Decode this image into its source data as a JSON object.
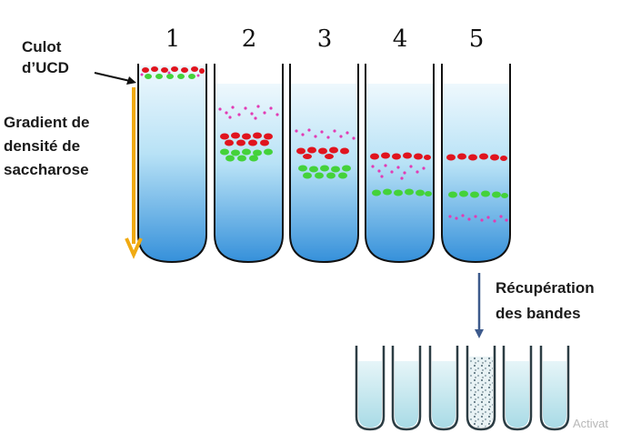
{
  "tubes": [
    {
      "number": "1"
    },
    {
      "number": "2"
    },
    {
      "number": "3"
    },
    {
      "number": "4"
    },
    {
      "number": "5"
    }
  ],
  "labels": {
    "culot_line1": "Culot",
    "culot_line2": "d’UCD",
    "gradient_line1": "Gradient de",
    "gradient_line2": "densité de",
    "gradient_line3": "saccharose",
    "recup_line1": "Récupération",
    "recup_line2": "des bandes"
  },
  "watermark": "Activat",
  "colors": {
    "red_band": "#e0141e",
    "green_band": "#44d23a",
    "pink_band": "#e23bb4",
    "gradient_arrow": "#f0aa12",
    "recovery_arrow": "#3d5a8c",
    "gradient_top": "#e8f6fc",
    "gradient_bottom": "#2f8fd8"
  }
}
